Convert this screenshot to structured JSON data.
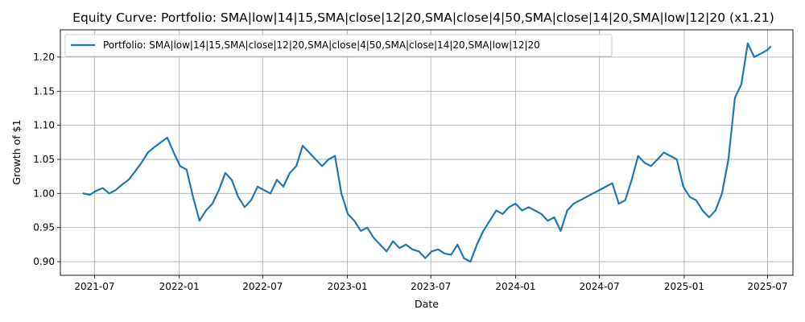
{
  "chart_data": {
    "type": "line",
    "title": "Equity Curve: Portfolio: SMA|low|14|15,SMA|close|12|20,SMA|close|4|50,SMA|close|14|20,SMA|low|12|20 (x1.21)",
    "xlabel": "Date",
    "ylabel": "Growth of $1",
    "xlim": [
      "2021-04-18",
      "2025-08-25"
    ],
    "ylim": [
      0.88,
      1.24
    ],
    "grid": true,
    "legend_position": "top-left",
    "x_ticks": [
      "2021-07",
      "2022-01",
      "2022-07",
      "2023-01",
      "2023-07",
      "2024-01",
      "2024-07",
      "2025-01",
      "2025-07"
    ],
    "y_ticks": [
      "0.90",
      "0.95",
      "1.00",
      "1.05",
      "1.10",
      "1.15",
      "1.20"
    ],
    "series": [
      {
        "name": "Portfolio: SMA|low|14|15,SMA|close|12|20,SMA|close|4|50,SMA|close|14|20,SMA|low|12|20",
        "color": "#1f77b4",
        "x": [
          "2021-06-07",
          "2021-06-21",
          "2021-07-05",
          "2021-07-19",
          "2021-08-02",
          "2021-08-16",
          "2021-08-30",
          "2021-09-13",
          "2021-09-27",
          "2021-10-11",
          "2021-10-25",
          "2021-11-08",
          "2021-11-22",
          "2021-12-06",
          "2021-12-20",
          "2022-01-03",
          "2022-01-17",
          "2022-01-31",
          "2022-02-14",
          "2022-02-28",
          "2022-03-14",
          "2022-03-28",
          "2022-04-11",
          "2022-04-25",
          "2022-05-09",
          "2022-05-23",
          "2022-06-06",
          "2022-06-20",
          "2022-07-04",
          "2022-07-18",
          "2022-08-01",
          "2022-08-15",
          "2022-08-29",
          "2022-09-12",
          "2022-09-26",
          "2022-10-10",
          "2022-10-24",
          "2022-11-07",
          "2022-11-21",
          "2022-12-05",
          "2022-12-19",
          "2023-01-02",
          "2023-01-16",
          "2023-01-30",
          "2023-02-13",
          "2023-02-27",
          "2023-03-13",
          "2023-03-27",
          "2023-04-10",
          "2023-04-24",
          "2023-05-08",
          "2023-05-22",
          "2023-06-05",
          "2023-06-19",
          "2023-07-03",
          "2023-07-17",
          "2023-07-31",
          "2023-08-14",
          "2023-08-28",
          "2023-09-11",
          "2023-09-25",
          "2023-10-09",
          "2023-10-23",
          "2023-11-06",
          "2023-11-20",
          "2023-12-04",
          "2023-12-18",
          "2024-01-01",
          "2024-01-15",
          "2024-01-29",
          "2024-02-12",
          "2024-02-26",
          "2024-03-11",
          "2024-03-25",
          "2024-04-08",
          "2024-04-22",
          "2024-05-06",
          "2024-05-20",
          "2024-06-03",
          "2024-06-17",
          "2024-07-01",
          "2024-07-15",
          "2024-07-29",
          "2024-08-12",
          "2024-08-26",
          "2024-09-09",
          "2024-09-23",
          "2024-10-07",
          "2024-10-21",
          "2024-11-04",
          "2024-11-18",
          "2024-12-02",
          "2024-12-16",
          "2024-12-30",
          "2025-01-13",
          "2025-01-27",
          "2025-02-10",
          "2025-02-24",
          "2025-03-10",
          "2025-03-24",
          "2025-04-07",
          "2025-04-21",
          "2025-05-05",
          "2025-05-19",
          "2025-06-02",
          "2025-06-16",
          "2025-06-30",
          "2025-07-07"
        ],
        "values": [
          1.0,
          0.998,
          1.004,
          1.008,
          1.0,
          1.005,
          1.013,
          1.02,
          1.032,
          1.045,
          1.06,
          1.068,
          1.075,
          1.082,
          1.06,
          1.04,
          1.035,
          0.995,
          0.96,
          0.975,
          0.985,
          1.005,
          1.03,
          1.02,
          0.995,
          0.98,
          0.99,
          1.01,
          1.005,
          1.0,
          1.02,
          1.01,
          1.03,
          1.04,
          1.07,
          1.06,
          1.05,
          1.04,
          1.05,
          1.055,
          1.0,
          0.97,
          0.96,
          0.945,
          0.95,
          0.935,
          0.925,
          0.915,
          0.93,
          0.92,
          0.925,
          0.918,
          0.915,
          0.905,
          0.915,
          0.918,
          0.912,
          0.91,
          0.925,
          0.905,
          0.9,
          0.925,
          0.945,
          0.96,
          0.975,
          0.97,
          0.98,
          0.985,
          0.975,
          0.98,
          0.975,
          0.97,
          0.96,
          0.965,
          0.945,
          0.975,
          0.985,
          0.99,
          0.995,
          1.0,
          1.005,
          1.01,
          1.015,
          0.985,
          0.99,
          1.02,
          1.055,
          1.045,
          1.04,
          1.05,
          1.06,
          1.055,
          1.05,
          1.01,
          0.995,
          0.99,
          0.975,
          0.965,
          0.975,
          1.0,
          1.05,
          1.14,
          1.16,
          1.22,
          1.2,
          1.205,
          1.21,
          1.215
        ]
      }
    ]
  }
}
